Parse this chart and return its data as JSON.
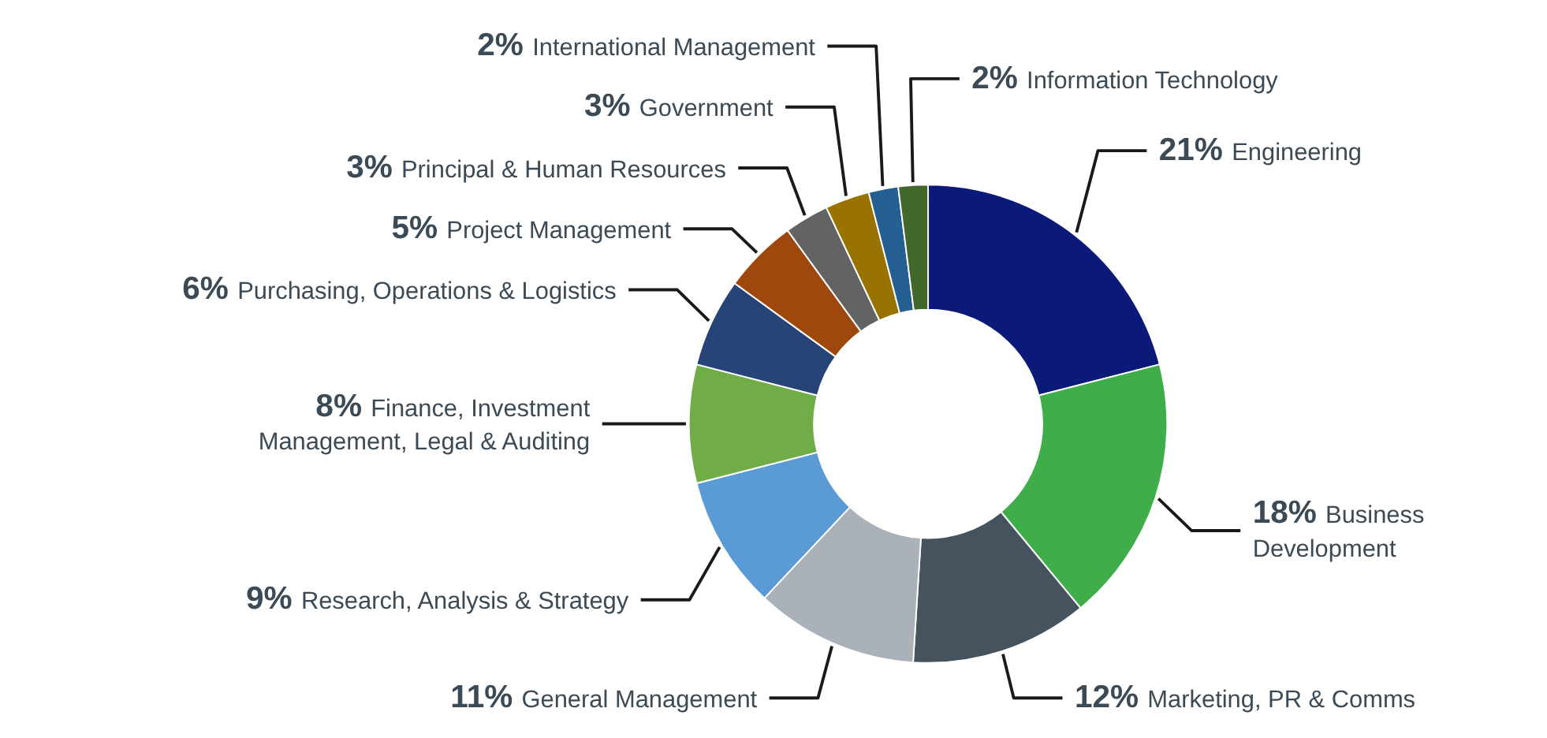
{
  "chart_data": {
    "type": "donut",
    "categories": [
      "Engineering",
      "Business Development",
      "Marketing, PR & Comms",
      "General Management",
      "Research, Analysis & Strategy",
      "Finance, Investment Management, Legal & Auditing",
      "Purchasing, Operations & Logistics",
      "Project Management",
      "Principal & Human Resources",
      "Government",
      "International Management",
      "Information Technology"
    ],
    "values": [
      21,
      18,
      12,
      11,
      9,
      8,
      6,
      5,
      3,
      3,
      2,
      2
    ],
    "value_labels": [
      "21%",
      "18%",
      "12%",
      "11%",
      "9%",
      "8%",
      "6%",
      "5%",
      "3%",
      "3%",
      "2%",
      "2%"
    ],
    "colors": [
      "#0b1a78",
      "#3fae4a",
      "#44535e",
      "#abb1b8",
      "#5b9bd5",
      "#70ad47",
      "#264478",
      "#9e480e",
      "#636363",
      "#997300",
      "#255e91",
      "#43682b"
    ]
  }
}
